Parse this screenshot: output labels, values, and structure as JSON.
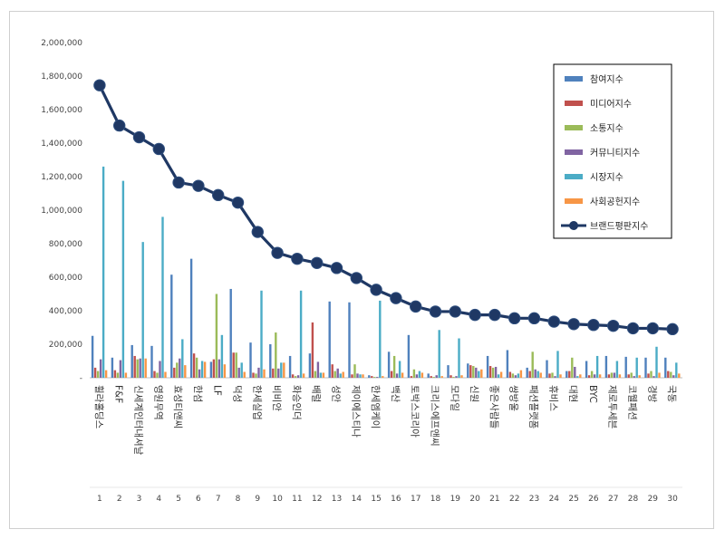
{
  "chart_data": {
    "type": "bar",
    "title": "",
    "xlabel": "",
    "ylabel": "",
    "ylim": [
      0,
      2000000
    ],
    "yticks": [
      "-",
      "200,000",
      "400,000",
      "600,000",
      "800,000",
      "1,000,000",
      "1,200,000",
      "1,400,000",
      "1,600,000",
      "1,800,000",
      "2,000,000"
    ],
    "grid": false,
    "legend_position": "top-right",
    "categories": [
      "휠라홀딩스",
      "F&F",
      "신세계인터내셔날",
      "영원무역",
      "효성티앤씨",
      "한섬",
      "LF",
      "덕성",
      "한세실업",
      "비비안",
      "화승인더",
      "배럴",
      "성안",
      "제이에스티나",
      "한세엠케이",
      "백산",
      "토박스코리아",
      "크리스에프앤씨",
      "모다일",
      "신원",
      "좋은사람들",
      "쌍방울",
      "패션플랫폼",
      "휴비스",
      "대현",
      "BYC",
      "제로투세븐",
      "코웰패션",
      "경방",
      "국동"
    ],
    "rank_labels": [
      "1",
      "2",
      "3",
      "4",
      "5",
      "6",
      "7",
      "8",
      "9",
      "10",
      "11",
      "12",
      "13",
      "14",
      "15",
      "16",
      "17",
      "18",
      "19",
      "20",
      "21",
      "22",
      "23",
      "24",
      "25",
      "26",
      "27",
      "28",
      "29",
      "30"
    ],
    "series": [
      {
        "name": "참여지수",
        "kind": "bar",
        "color": "#4F81BD",
        "values": [
          250000,
          120000,
          195000,
          190000,
          615000,
          710000,
          95000,
          530000,
          210000,
          200000,
          130000,
          145000,
          455000,
          450000,
          15000,
          155000,
          255000,
          25000,
          75000,
          85000,
          130000,
          165000,
          60000,
          105000,
          40000,
          100000,
          130000,
          125000,
          120000,
          120000
        ]
      },
      {
        "name": "미디어지수",
        "kind": "bar",
        "color": "#C0504D",
        "values": [
          60000,
          45000,
          130000,
          40000,
          60000,
          145000,
          110000,
          150000,
          30000,
          55000,
          20000,
          330000,
          80000,
          20000,
          10000,
          40000,
          10000,
          10000,
          15000,
          75000,
          70000,
          35000,
          40000,
          25000,
          40000,
          15000,
          20000,
          20000,
          25000,
          40000
        ]
      },
      {
        "name": "소통지수",
        "kind": "bar",
        "color": "#9BBB59",
        "values": [
          40000,
          30000,
          110000,
          30000,
          90000,
          120000,
          500000,
          150000,
          25000,
          270000,
          10000,
          40000,
          40000,
          80000,
          5000,
          130000,
          50000,
          5000,
          5000,
          70000,
          60000,
          25000,
          155000,
          30000,
          120000,
          40000,
          30000,
          30000,
          40000,
          35000
        ]
      },
      {
        "name": "커뮤니티지수",
        "kind": "bar",
        "color": "#8064A2",
        "values": [
          110000,
          105000,
          115000,
          100000,
          115000,
          50000,
          110000,
          60000,
          60000,
          55000,
          15000,
          95000,
          55000,
          25000,
          5000,
          25000,
          20000,
          15000,
          10000,
          60000,
          65000,
          15000,
          50000,
          10000,
          65000,
          20000,
          30000,
          10000,
          10000,
          15000
        ]
      },
      {
        "name": "시장지수",
        "kind": "bar",
        "color": "#4BACC6",
        "values": [
          1260000,
          1175000,
          810000,
          960000,
          230000,
          100000,
          255000,
          90000,
          520000,
          90000,
          520000,
          30000,
          25000,
          20000,
          460000,
          100000,
          40000,
          285000,
          235000,
          40000,
          20000,
          25000,
          40000,
          160000,
          10000,
          130000,
          100000,
          120000,
          185000,
          90000
        ]
      },
      {
        "name": "사회공헌지수",
        "kind": "bar",
        "color": "#F79646",
        "values": [
          45000,
          30000,
          115000,
          35000,
          75000,
          95000,
          80000,
          35000,
          50000,
          90000,
          25000,
          30000,
          35000,
          20000,
          10000,
          30000,
          30000,
          10000,
          15000,
          50000,
          35000,
          45000,
          30000,
          20000,
          20000,
          20000,
          20000,
          15000,
          30000,
          25000
        ]
      },
      {
        "name": "브랜드평판지수",
        "kind": "line",
        "color": "#1F3864",
        "values": [
          1745000,
          1505000,
          1435000,
          1365000,
          1165000,
          1145000,
          1090000,
          1045000,
          870000,
          745000,
          710000,
          685000,
          655000,
          595000,
          525000,
          475000,
          425000,
          395000,
          395000,
          375000,
          375000,
          355000,
          355000,
          335000,
          320000,
          315000,
          310000,
          295000,
          295000,
          290000
        ]
      }
    ]
  }
}
